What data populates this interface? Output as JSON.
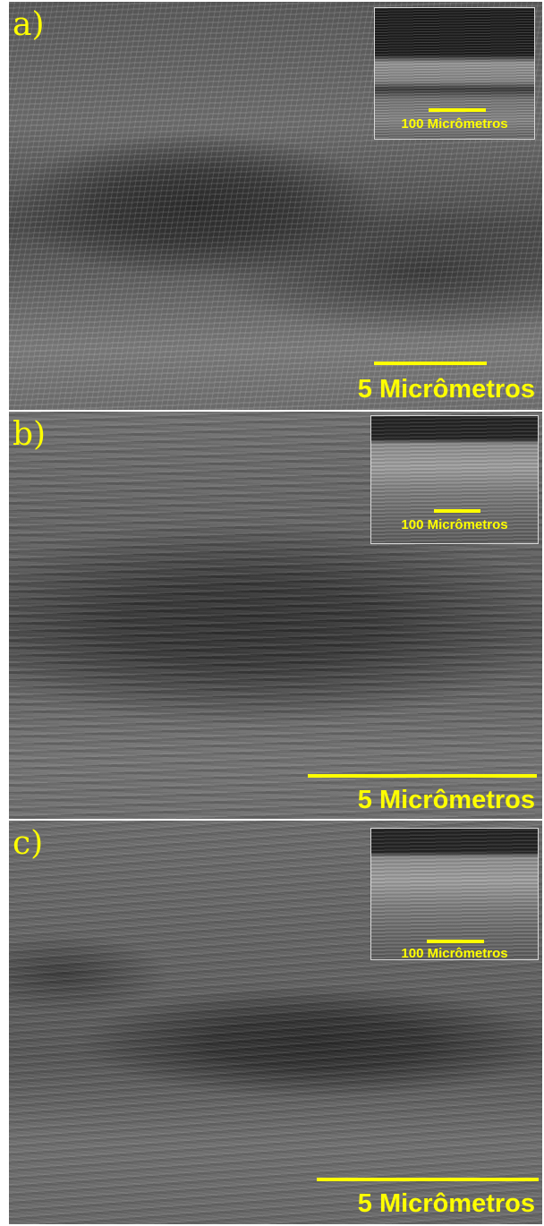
{
  "figure": {
    "panels": [
      {
        "label": "a)",
        "inset_scale_label": "100 Micrômetros",
        "main_scale_label": "5 Micrômetros"
      },
      {
        "label": "b)",
        "inset_scale_label": "100 Micrômetros",
        "main_scale_label": "5 Micrômetros"
      },
      {
        "label": "c)",
        "inset_scale_label": "100 Micrômetros",
        "main_scale_label": "5 Micrômetros"
      }
    ],
    "annotation_color": "#ffff00"
  }
}
